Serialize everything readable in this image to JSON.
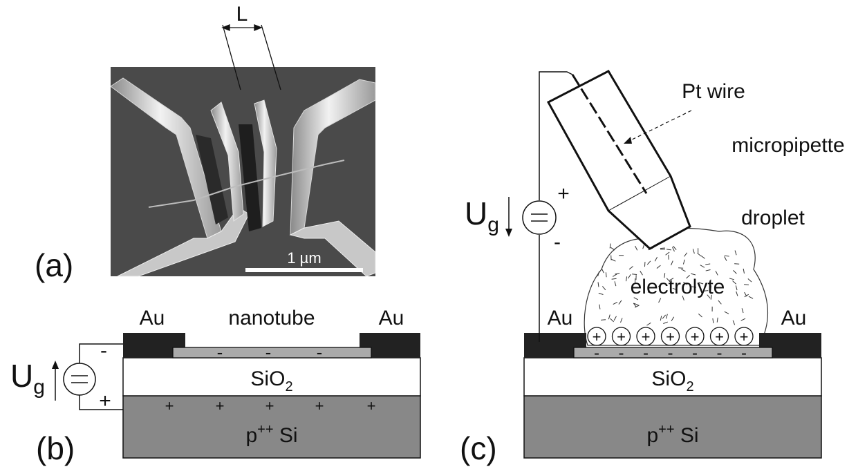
{
  "panel_a": {
    "label": "(a)",
    "length_label": "L",
    "scale_bar_label": "1 µm"
  },
  "panel_b": {
    "label": "(b)",
    "electrode_left": "Au",
    "electrode_right": "Au",
    "nanotube_label": "nanotube",
    "oxide_label": "SiO",
    "oxide_sub": "2",
    "substrate_label": "p",
    "substrate_sup": "++",
    "substrate_rest": " Si",
    "gate_label": "U",
    "gate_sub": "g",
    "minus_sign": "-",
    "plus_sign": "+"
  },
  "panel_c": {
    "label": "(c)",
    "electrode_left": "Au",
    "electrode_right": "Au",
    "pt_wire_label": "Pt wire",
    "micropipette_label": "micropipette",
    "droplet_label": "droplet",
    "electrolyte_label": "electrolyte",
    "oxide_label": "SiO",
    "oxide_sub": "2",
    "substrate_label": "p",
    "substrate_sup": "++",
    "substrate_rest": " Si",
    "gate_label": "U",
    "gate_sub": "g",
    "plus_sign": "+",
    "minus_sign": "-"
  }
}
